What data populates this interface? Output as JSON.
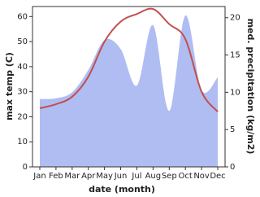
{
  "chart_data": {
    "type": "line",
    "categories": [
      "Jan",
      "Feb",
      "Mar",
      "Apr",
      "May",
      "Jun",
      "Jul",
      "Aug",
      "Sep",
      "Oct",
      "Nov",
      "Dec"
    ],
    "x_label": "date (month)",
    "y_label": "max temp (C)",
    "y2_label": "med. precipitation (kg/m2)",
    "ylim": [
      0,
      64
    ],
    "yticks": [
      0,
      10,
      20,
      30,
      40,
      50,
      60
    ],
    "y2lim": [
      0,
      21.5
    ],
    "y2ticks": [
      0,
      5,
      10,
      15,
      20
    ],
    "series": [
      {
        "name": "med. precipitation",
        "axis": "y2",
        "kind": "area",
        "color": "#b0bdf2",
        "values": [
          9.1,
          9.2,
          10,
          13,
          17,
          15.8,
          10.9,
          19,
          7.5,
          20.3,
          10.3,
          12
        ]
      },
      {
        "name": "max temp",
        "kind": "line",
        "color": "#c0504d",
        "values": [
          23.4,
          25,
          28,
          36,
          50,
          58,
          61,
          63,
          57,
          51,
          30,
          22
        ]
      }
    ]
  }
}
